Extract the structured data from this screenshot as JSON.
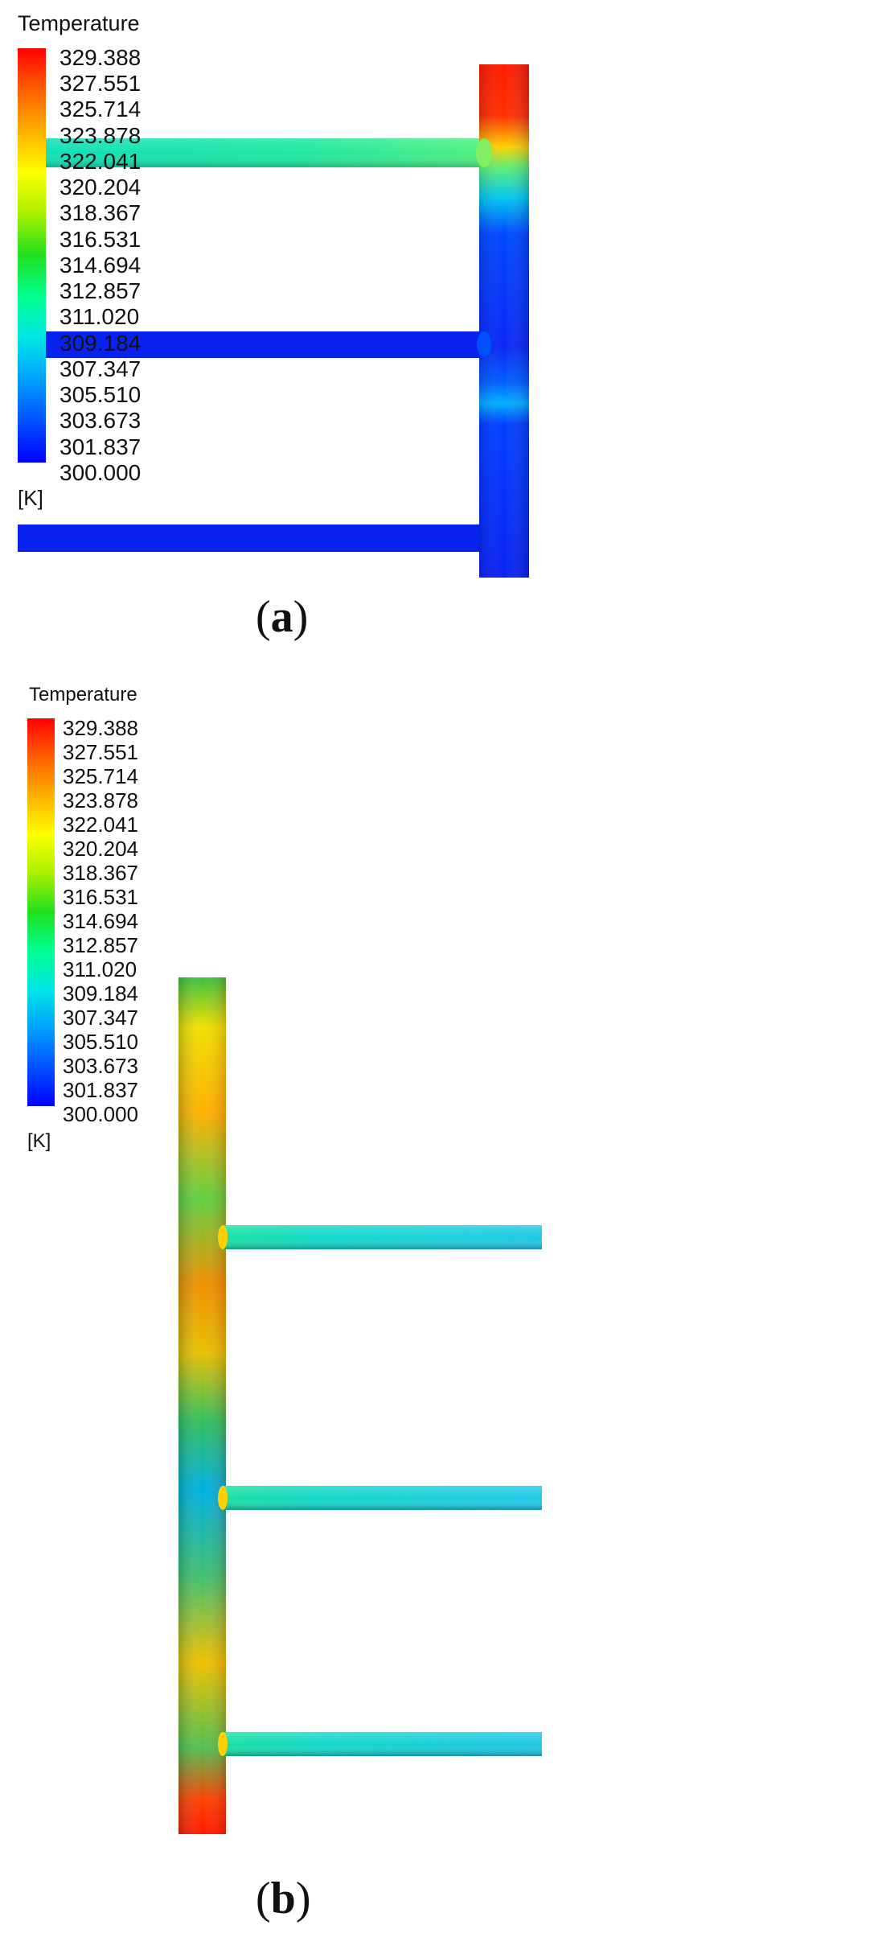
{
  "colors": {
    "scale": [
      "#0000ff",
      "#0050ff",
      "#00a0ff",
      "#00e5e5",
      "#00ff90",
      "#20e020",
      "#a8f000",
      "#ffff00",
      "#ffb000",
      "#ff6000",
      "#ff0000"
    ],
    "hot": "#ff1a00",
    "cold": "#0a22f0"
  },
  "panels": [
    {
      "id": "a",
      "legend_title": "Temperature",
      "ticks": [
        "329.388",
        "327.551",
        "325.714",
        "323.878",
        "322.041",
        "320.204",
        "318.367",
        "316.531",
        "314.694",
        "312.857",
        "311.020",
        "309.184",
        "307.347",
        "305.510",
        "303.673",
        "301.837",
        "300.000"
      ],
      "unit": "[K]",
      "caption_open": "(",
      "caption_letter": "a",
      "caption_close": ")"
    },
    {
      "id": "b",
      "legend_title": "Temperature",
      "ticks": [
        "329.388",
        "327.551",
        "325.714",
        "323.878",
        "322.041",
        "320.204",
        "318.367",
        "316.531",
        "314.694",
        "312.857",
        "311.020",
        "309.184",
        "307.347",
        "305.510",
        "303.673",
        "301.837",
        "300.000"
      ],
      "unit": "[K]",
      "caption_open": "(",
      "caption_letter": "b",
      "caption_close": ")"
    }
  ]
}
